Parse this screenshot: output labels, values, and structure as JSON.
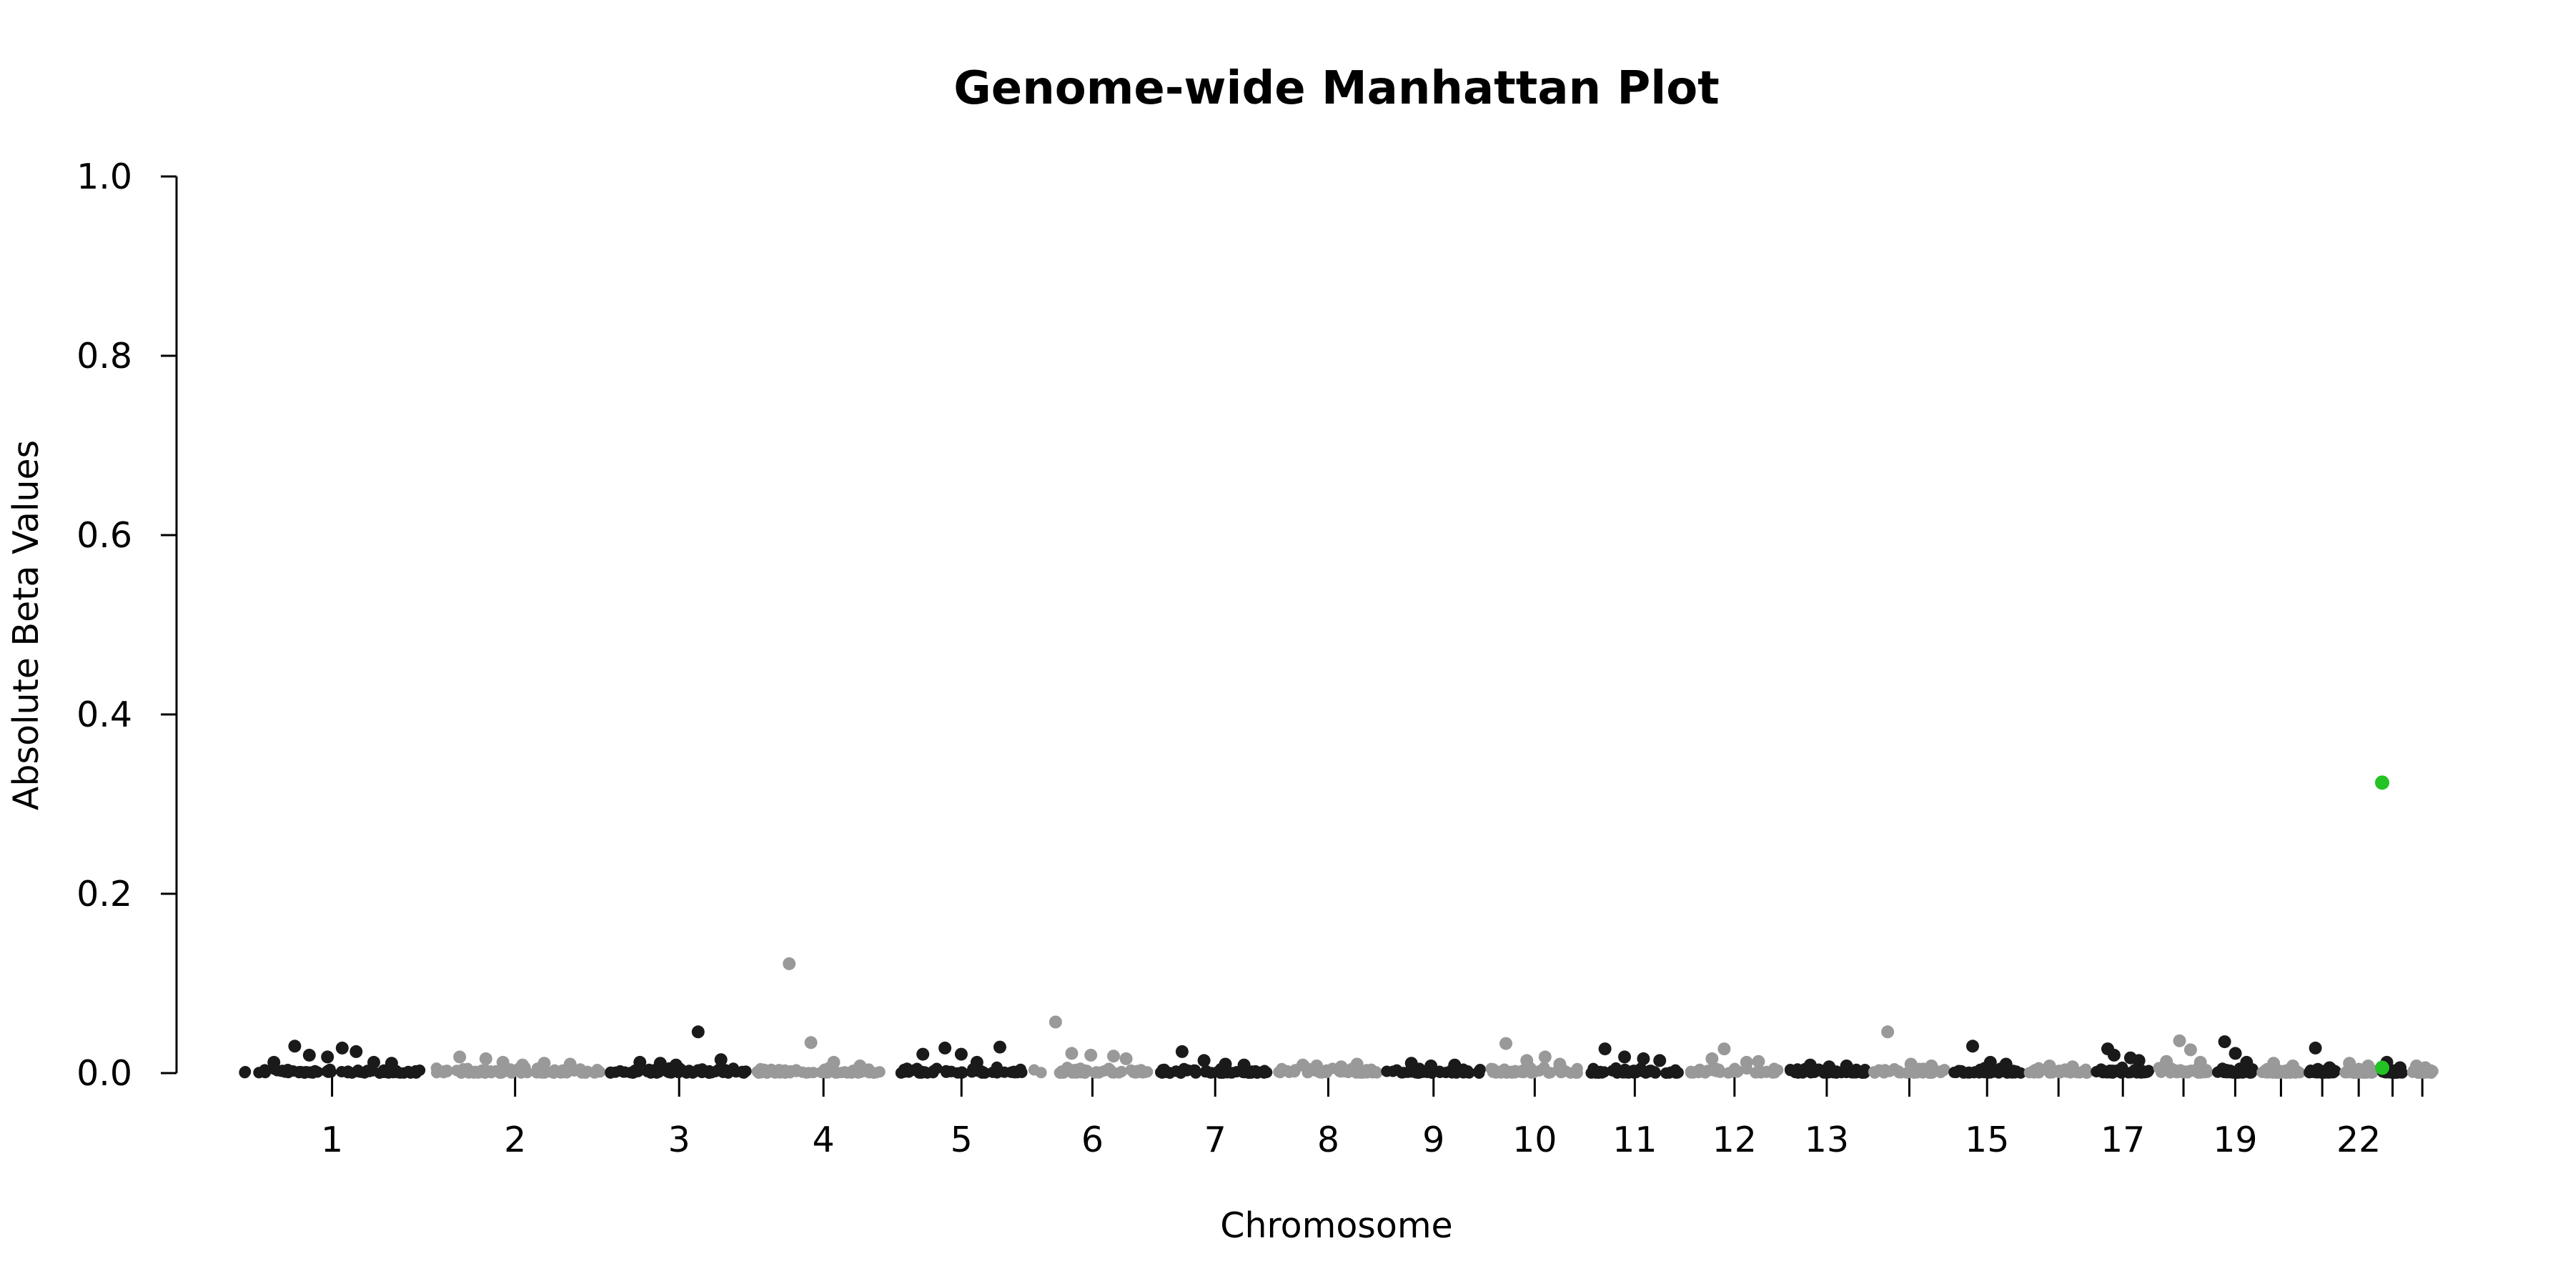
{
  "chart_data": {
    "type": "scatter",
    "title": "Genome-wide Manhattan Plot",
    "xlabel": "Chromosome",
    "ylabel": "Absolute Beta Values",
    "ylim": [
      0,
      1.0
    ],
    "y_ticks": [
      "0.0",
      "0.2",
      "0.4",
      "0.6",
      "0.8",
      "1.0"
    ],
    "grid": false,
    "legend": "none",
    "point_colors": [
      "#1a1a1a",
      "#999999"
    ],
    "highlight_color": "#22c322",
    "chromosome_labels": [
      "1",
      "2",
      "3",
      "4",
      "5",
      "6",
      "7",
      "8",
      "9",
      "10",
      "11",
      "12",
      "13",
      "15",
      "17",
      "19",
      "22"
    ],
    "chromosomes": [
      {
        "chr": "1",
        "length": 249,
        "label": "1",
        "peaks": [
          0.012,
          0.03,
          0.02,
          0.018,
          0.028,
          0.024,
          0.012,
          0.011
        ]
      },
      {
        "chr": "2",
        "length": 243,
        "label": "2",
        "peaks": [
          0.018,
          0.016,
          0.012,
          0.009,
          0.011,
          0.01
        ]
      },
      {
        "chr": "3",
        "length": 198,
        "label": "3",
        "peaks": [
          0.012,
          0.011,
          0.009,
          0.046,
          0.015
        ]
      },
      {
        "chr": "4",
        "length": 190,
        "label": "4",
        "peaks": [
          0.122,
          0.034,
          0.012,
          0.008
        ]
      },
      {
        "chr": "5",
        "length": 181,
        "label": "5",
        "peaks": [
          0.021,
          0.028,
          0.021,
          0.012,
          0.029
        ]
      },
      {
        "chr": "6",
        "length": 171,
        "label": "6",
        "peaks": [
          0.057,
          0.022,
          0.02,
          0.019,
          0.016
        ]
      },
      {
        "chr": "7",
        "length": 159,
        "label": "7",
        "peaks": [
          0.024,
          0.014,
          0.01,
          0.009
        ]
      },
      {
        "chr": "8",
        "length": 145,
        "label": "8",
        "peaks": [
          0.009,
          0.008,
          0.007,
          0.01
        ]
      },
      {
        "chr": "9",
        "length": 138,
        "label": "9",
        "peaks": [
          0.011,
          0.008,
          0.009
        ]
      },
      {
        "chr": "10",
        "length": 134,
        "label": "10",
        "peaks": [
          0.033,
          0.014,
          0.018,
          0.01
        ]
      },
      {
        "chr": "11",
        "length": 135,
        "label": "11",
        "peaks": [
          0.027,
          0.018,
          0.016,
          0.014
        ]
      },
      {
        "chr": "12",
        "length": 133,
        "label": "12",
        "peaks": [
          0.016,
          0.027,
          0.012,
          0.013
        ]
      },
      {
        "chr": "13",
        "length": 115,
        "label": "13",
        "peaks": [
          0.009,
          0.007,
          0.008
        ]
      },
      {
        "chr": "14",
        "length": 107,
        "label": "",
        "peaks": [
          0.046,
          0.01,
          0.008
        ]
      },
      {
        "chr": "15",
        "length": 102,
        "label": "15",
        "peaks": [
          0.03,
          0.012,
          0.01
        ]
      },
      {
        "chr": "16",
        "length": 90,
        "label": "",
        "peaks": [
          0.008,
          0.007
        ]
      },
      {
        "chr": "17",
        "length": 83,
        "label": "17",
        "peaks": [
          0.027,
          0.02,
          0.017,
          0.014
        ]
      },
      {
        "chr": "18",
        "length": 80,
        "label": "",
        "peaks": [
          0.013,
          0.036,
          0.026,
          0.012
        ]
      },
      {
        "chr": "19",
        "length": 59,
        "label": "19",
        "peaks": [
          0.035,
          0.022,
          0.012
        ]
      },
      {
        "chr": "20",
        "length": 64,
        "label": "",
        "peaks": [
          0.011,
          0.008
        ]
      },
      {
        "chr": "21",
        "length": 47,
        "label": "",
        "peaks": [
          0.028,
          0.006
        ]
      },
      {
        "chr": "22",
        "length": 51,
        "label": "22",
        "peaks": [
          0.011,
          0.008
        ]
      },
      {
        "chr": "X",
        "length": 40,
        "label": "",
        "peaks": [
          0.012,
          0.006
        ],
        "highlights": [
          0.324,
          0.006
        ]
      },
      {
        "chr": "Y",
        "length": 40,
        "label": "",
        "peaks": [
          0.008,
          0.006
        ]
      }
    ]
  }
}
